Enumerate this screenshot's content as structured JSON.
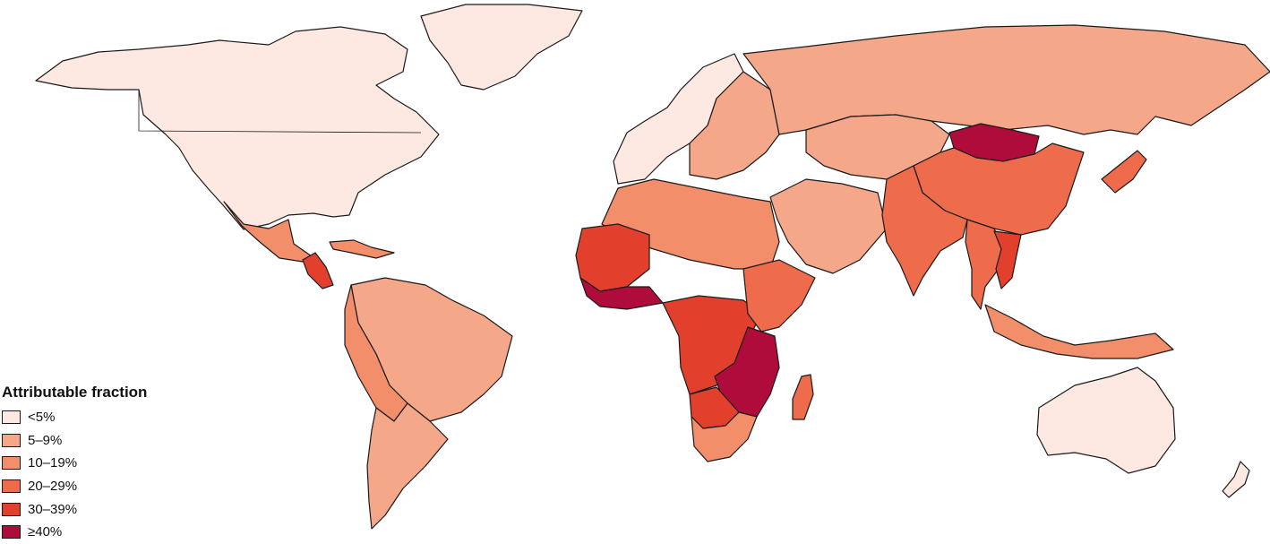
{
  "legend": {
    "title": "Attributable fraction",
    "items": [
      {
        "key": "lt5",
        "label": "<5%",
        "color": "#fde9e1"
      },
      {
        "key": "5_9",
        "label": "5–9%",
        "color": "#f5a78a"
      },
      {
        "key": "10_19",
        "label": "10–19%",
        "color": "#f28e6a"
      },
      {
        "key": "20_29",
        "label": "20–29%",
        "color": "#ee6c4c"
      },
      {
        "key": "30_39",
        "label": "30–39%",
        "color": "#e2402d"
      },
      {
        "key": "ge40",
        "label": "≥40%",
        "color": "#b00c3b"
      }
    ]
  },
  "regions": [
    {
      "name": "north-america",
      "category": "lt5"
    },
    {
      "name": "greenland",
      "category": "lt5"
    },
    {
      "name": "mexico",
      "category": "10_19"
    },
    {
      "name": "central-america",
      "category": "30_39"
    },
    {
      "name": "caribbean",
      "category": "10_19"
    },
    {
      "name": "south-america",
      "category": "5_9"
    },
    {
      "name": "andean-south-america",
      "category": "10_19"
    },
    {
      "name": "southern-cone",
      "category": "5_9"
    },
    {
      "name": "western-europe",
      "category": "lt5"
    },
    {
      "name": "eastern-europe",
      "category": "5_9"
    },
    {
      "name": "russia",
      "category": "5_9"
    },
    {
      "name": "north-africa",
      "category": "10_19"
    },
    {
      "name": "middle-east",
      "category": "5_9"
    },
    {
      "name": "west-africa-sahel",
      "category": "30_39"
    },
    {
      "name": "west-africa-coast",
      "category": "ge40"
    },
    {
      "name": "central-africa",
      "category": "30_39"
    },
    {
      "name": "east-africa",
      "category": "20_29"
    },
    {
      "name": "southern-africa-east",
      "category": "ge40"
    },
    {
      "name": "namibia-botswana",
      "category": "30_39"
    },
    {
      "name": "south-africa",
      "category": "10_19"
    },
    {
      "name": "madagascar",
      "category": "20_29"
    },
    {
      "name": "central-asia",
      "category": "5_9"
    },
    {
      "name": "mongolia",
      "category": "ge40"
    },
    {
      "name": "china",
      "category": "20_29"
    },
    {
      "name": "south-asia",
      "category": "20_29"
    },
    {
      "name": "southeast-asia",
      "category": "20_29"
    },
    {
      "name": "vietnam-laos",
      "category": "30_39"
    },
    {
      "name": "japan",
      "category": "20_29"
    },
    {
      "name": "maritime-southeast-asia",
      "category": "10_19"
    },
    {
      "name": "australia",
      "category": "lt5"
    },
    {
      "name": "new-zealand",
      "category": "lt5"
    }
  ]
}
